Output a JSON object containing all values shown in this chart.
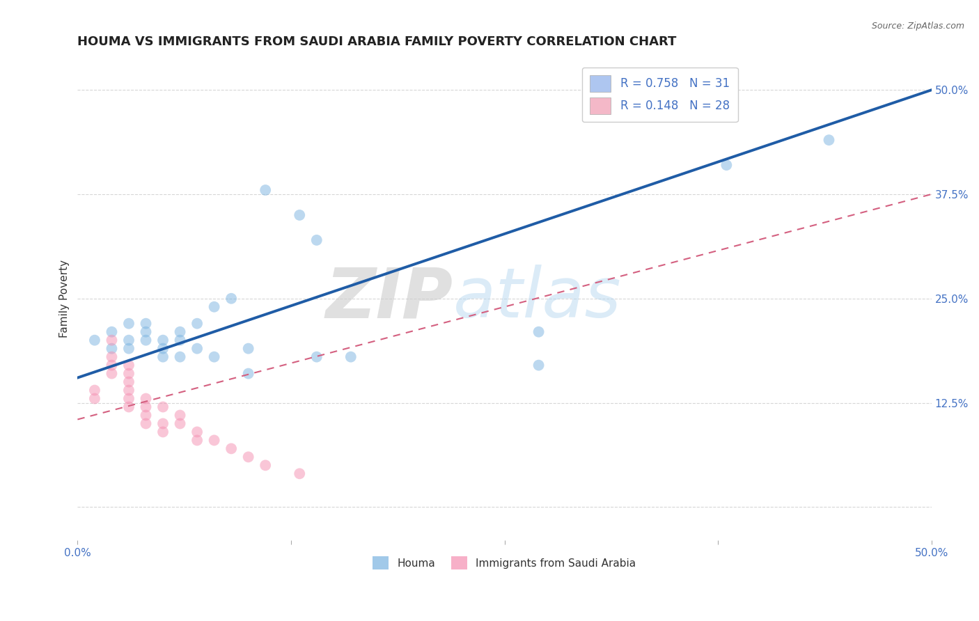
{
  "title": "HOUMA VS IMMIGRANTS FROM SAUDI ARABIA FAMILY POVERTY CORRELATION CHART",
  "source_text": "Source: ZipAtlas.com",
  "ylabel": "Family Poverty",
  "xlim": [
    0.0,
    0.5
  ],
  "ylim": [
    -0.04,
    0.54
  ],
  "xticks": [
    0.0,
    0.125,
    0.25,
    0.375,
    0.5
  ],
  "xticklabels": [
    "0.0%",
    "",
    "",
    "",
    "50.0%"
  ],
  "yticks": [
    0.0,
    0.125,
    0.25,
    0.375,
    0.5
  ],
  "yticklabels": [
    "",
    "12.5%",
    "25.0%",
    "37.5%",
    "50.0%"
  ],
  "legend_items": [
    {
      "label": "R = 0.758   N = 31",
      "color": "#aec6f0"
    },
    {
      "label": "R = 0.148   N = 28",
      "color": "#f4b8c8"
    }
  ],
  "legend_bottom_labels": [
    "Houma",
    "Immigrants from Saudi Arabia"
  ],
  "watermark_zip": "ZIP",
  "watermark_atlas": "atlas",
  "blue_scatter": [
    [
      0.01,
      0.2
    ],
    [
      0.02,
      0.21
    ],
    [
      0.02,
      0.19
    ],
    [
      0.03,
      0.22
    ],
    [
      0.03,
      0.2
    ],
    [
      0.03,
      0.19
    ],
    [
      0.04,
      0.22
    ],
    [
      0.04,
      0.21
    ],
    [
      0.04,
      0.2
    ],
    [
      0.05,
      0.19
    ],
    [
      0.05,
      0.2
    ],
    [
      0.05,
      0.18
    ],
    [
      0.06,
      0.2
    ],
    [
      0.06,
      0.18
    ],
    [
      0.06,
      0.21
    ],
    [
      0.07,
      0.19
    ],
    [
      0.07,
      0.22
    ],
    [
      0.08,
      0.18
    ],
    [
      0.08,
      0.24
    ],
    [
      0.09,
      0.25
    ],
    [
      0.1,
      0.19
    ],
    [
      0.1,
      0.16
    ],
    [
      0.11,
      0.38
    ],
    [
      0.13,
      0.35
    ],
    [
      0.14,
      0.18
    ],
    [
      0.14,
      0.32
    ],
    [
      0.16,
      0.18
    ],
    [
      0.27,
      0.21
    ],
    [
      0.27,
      0.17
    ],
    [
      0.38,
      0.41
    ],
    [
      0.44,
      0.44
    ]
  ],
  "pink_scatter": [
    [
      0.01,
      0.14
    ],
    [
      0.01,
      0.13
    ],
    [
      0.02,
      0.2
    ],
    [
      0.02,
      0.16
    ],
    [
      0.02,
      0.18
    ],
    [
      0.02,
      0.17
    ],
    [
      0.03,
      0.17
    ],
    [
      0.03,
      0.16
    ],
    [
      0.03,
      0.15
    ],
    [
      0.03,
      0.14
    ],
    [
      0.03,
      0.13
    ],
    [
      0.03,
      0.12
    ],
    [
      0.04,
      0.13
    ],
    [
      0.04,
      0.12
    ],
    [
      0.04,
      0.11
    ],
    [
      0.04,
      0.1
    ],
    [
      0.05,
      0.12
    ],
    [
      0.05,
      0.1
    ],
    [
      0.05,
      0.09
    ],
    [
      0.06,
      0.11
    ],
    [
      0.06,
      0.1
    ],
    [
      0.07,
      0.09
    ],
    [
      0.07,
      0.08
    ],
    [
      0.08,
      0.08
    ],
    [
      0.09,
      0.07
    ],
    [
      0.1,
      0.06
    ],
    [
      0.11,
      0.05
    ],
    [
      0.13,
      0.04
    ]
  ],
  "blue_line_x": [
    0.0,
    0.5
  ],
  "blue_line_y": [
    0.155,
    0.5
  ],
  "pink_line_x": [
    0.0,
    0.5
  ],
  "pink_line_y": [
    0.105,
    0.375
  ],
  "scatter_size": 130,
  "blue_color": "#7ab3e0",
  "pink_color": "#f48fb1",
  "blue_line_color": "#1f5ca6",
  "pink_line_color": "#d46080",
  "grid_color": "#cccccc",
  "background_color": "#ffffff",
  "title_fontsize": 13,
  "axis_label_fontsize": 11,
  "tick_fontsize": 11,
  "tick_color": "#4472c4"
}
